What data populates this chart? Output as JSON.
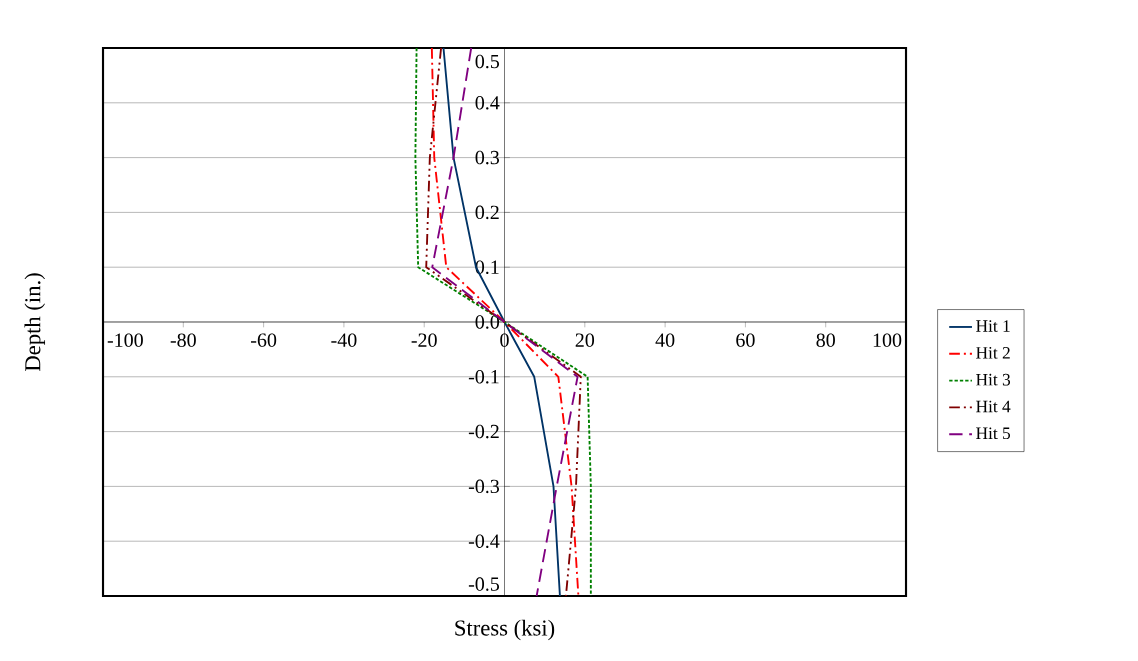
{
  "chart_data": {
    "type": "line",
    "xlabel": "Stress (ksi)",
    "ylabel": "Depth (in.)",
    "xlim": [
      -100,
      100
    ],
    "ylim": [
      -0.5,
      0.5
    ],
    "xticks": [
      -100,
      -80,
      -60,
      -40,
      -20,
      0,
      20,
      40,
      60,
      80,
      100
    ],
    "yticks": [
      {
        "value": 0.5,
        "label": "0.5"
      },
      {
        "value": 0.4,
        "label": "0.4"
      },
      {
        "value": 0.3,
        "label": "0.3"
      },
      {
        "value": 0.2,
        "label": "0.2"
      },
      {
        "value": 0.1,
        "label": "0.1"
      },
      {
        "value": 0,
        "label": "0.0"
      },
      -0.1,
      -0.2,
      -0.3,
      -0.4,
      -0.5
    ],
    "grid": "y",
    "legend": "right",
    "marker": "none",
    "series": [
      {
        "name": "Hit 1",
        "color": "#003366",
        "line_style": "solid",
        "x": [
          -15.2,
          -12.7,
          -7.1,
          0,
          7.4,
          12.2,
          13.8
        ],
        "values": [
          0.5,
          0.3,
          0.1,
          0,
          -0.1,
          -0.3,
          -0.5
        ]
      },
      {
        "name": "Hit 2",
        "color": "#ff0000",
        "line_style": "dashdot",
        "x": [
          -18.1,
          -17.5,
          -14.5,
          0,
          13.4,
          16.7,
          18.4
        ],
        "values": [
          0.5,
          0.3,
          0.1,
          0,
          -0.1,
          -0.3,
          -0.5
        ]
      },
      {
        "name": "Hit 3",
        "color": "#008000",
        "line_style": "dotted",
        "x": [
          -21.9,
          -22.2,
          -21.5,
          0,
          20.7,
          21.5,
          21.5
        ],
        "values": [
          0.5,
          0.3,
          0.1,
          0,
          -0.1,
          -0.3,
          -0.5
        ]
      },
      {
        "name": "Hit 4",
        "color": "#800000",
        "line_style": "dashdotdot",
        "x": [
          -15.8,
          -18.6,
          -19.5,
          0,
          19.0,
          17.8,
          15.3
        ],
        "values": [
          0.5,
          0.3,
          0.1,
          0,
          -0.1,
          -0.3,
          -0.5
        ]
      },
      {
        "name": "Hit 5",
        "color": "#800080",
        "line_style": "dashed",
        "x": [
          -8.3,
          -12.7,
          -18.0,
          0,
          18.2,
          13.0,
          8.0
        ],
        "values": [
          0.5,
          0.3,
          0.1,
          0,
          -0.1,
          -0.3,
          -0.5
        ]
      }
    ]
  }
}
